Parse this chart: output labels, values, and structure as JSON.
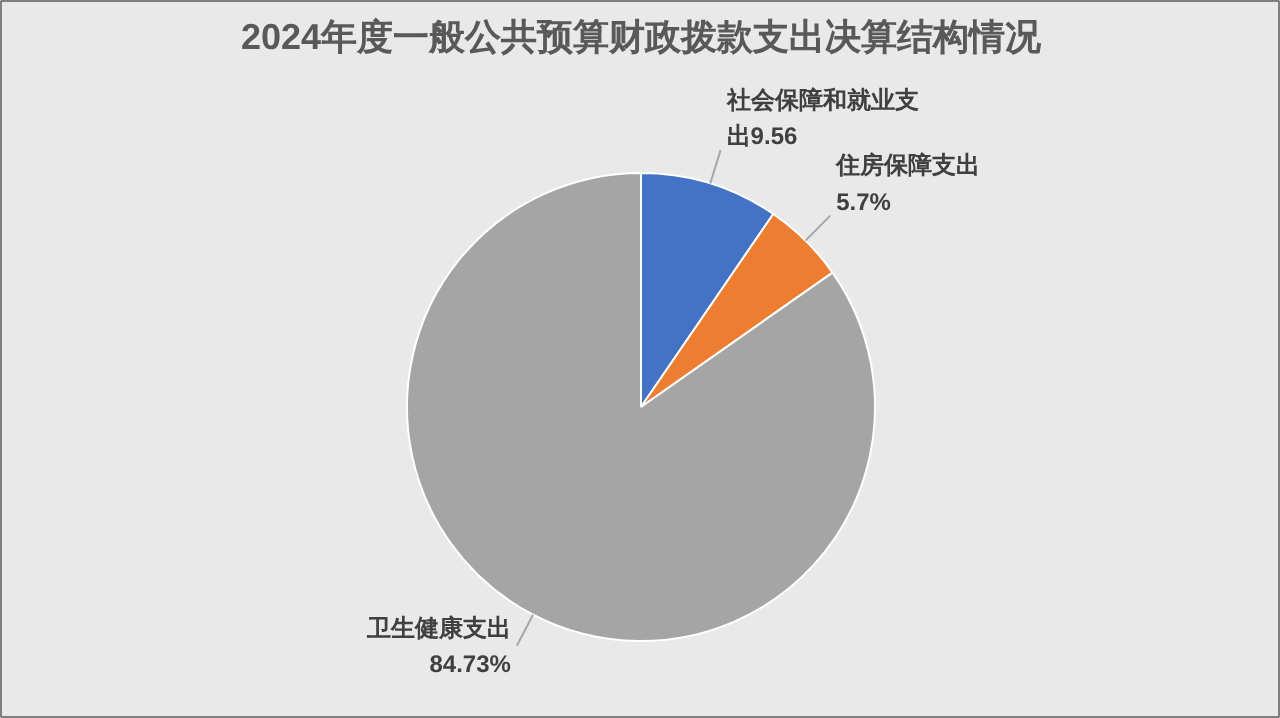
{
  "chart_data": {
    "type": "pie",
    "title": "2024年度一般公共预算财政拨款支出决算结构情况",
    "categories": [
      "社会保障和就业支出",
      "住房保障支出",
      "卫生健康支出"
    ],
    "values": [
      9.56,
      5.7,
      84.73
    ],
    "value_labels": [
      "9.56",
      "5.7%",
      "84.73%"
    ],
    "colors": [
      "#4472c4",
      "#ed7d31",
      "#a5a5a5"
    ]
  }
}
